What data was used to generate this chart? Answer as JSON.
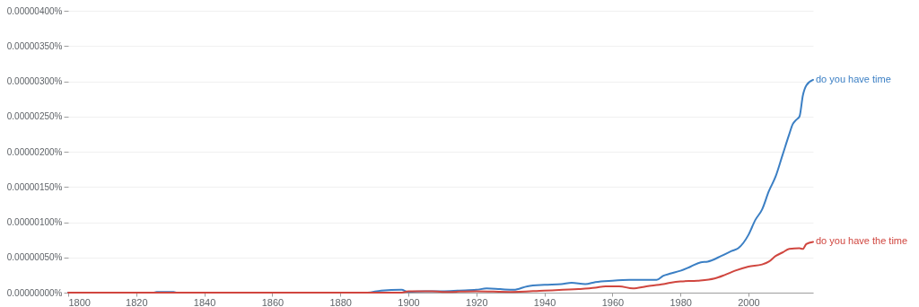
{
  "chart_data": {
    "type": "line",
    "grid": "y",
    "marker": "none",
    "line_style": "solid",
    "xlim": [
      1800,
      2019
    ],
    "xticks": [
      1800,
      1820,
      1840,
      1860,
      1880,
      1900,
      1920,
      1940,
      1960,
      1980,
      2000
    ],
    "ylim": [
      0,
      4e-06
    ],
    "yticks": [
      {
        "value": 0,
        "label": "0.00000000%"
      },
      {
        "value": 5e-07,
        "label": "0.00000050%"
      },
      {
        "value": 1e-06,
        "label": "0.00000100%"
      },
      {
        "value": 1.5e-06,
        "label": "0.00000150%"
      },
      {
        "value": 2e-06,
        "label": "0.00000200%"
      },
      {
        "value": 2.5e-06,
        "label": "0.00000250%"
      },
      {
        "value": 3e-06,
        "label": "0.00000300%"
      },
      {
        "value": 3.5e-06,
        "label": "0.00000350%"
      },
      {
        "value": 4e-06,
        "label": "0.00000400%"
      }
    ],
    "series": [
      {
        "name": "do you have time",
        "color": "#3b7fc4",
        "x": [
          1800,
          1825,
          1826,
          1831,
          1832,
          1888,
          1892,
          1898,
          1900,
          1905,
          1910,
          1915,
          1920,
          1923,
          1927,
          1931,
          1935,
          1940,
          1945,
          1948,
          1952,
          1955,
          1960,
          1965,
          1970,
          1973,
          1975,
          1977,
          1980,
          1983,
          1986,
          1988,
          1992,
          1995,
          1997,
          2000,
          2002,
          2004,
          2006,
          2008,
          2010,
          2012,
          2013,
          2014,
          2015,
          2016,
          2017,
          2019
        ],
        "values": [
          0,
          0,
          1e-08,
          1e-08,
          0,
          0,
          3e-08,
          4e-08,
          1e-08,
          2e-08,
          2e-08,
          3e-08,
          4e-08,
          6e-08,
          5e-08,
          4e-08,
          9e-08,
          1.1e-07,
          1.2e-07,
          1.4e-07,
          1.2e-07,
          1.5e-07,
          1.7e-07,
          1.8e-07,
          1.8e-07,
          1.8e-07,
          2.4e-07,
          2.7e-07,
          3.1e-07,
          3.7e-07,
          4.3e-07,
          4.4e-07,
          5.2e-07,
          5.9e-07,
          6.3e-07,
          8.2e-07,
          1.03e-06,
          1.18e-06,
          1.44e-06,
          1.65e-06,
          1.95e-06,
          2.25e-06,
          2.39e-06,
          2.45e-06,
          2.5e-06,
          2.8e-06,
          2.94e-06,
          3.02e-06
        ]
      },
      {
        "name": "do you have the time",
        "color": "#d0463f",
        "x": [
          1800,
          1898,
          1900,
          1907,
          1910,
          1920,
          1930,
          1940,
          1950,
          1955,
          1958,
          1962,
          1966,
          1970,
          1975,
          1977,
          1980,
          1985,
          1990,
          1993,
          1996,
          2000,
          2004,
          2006,
          2008,
          2010,
          2012,
          2015,
          2016,
          2017,
          2019
        ],
        "values": [
          0,
          0,
          2e-08,
          2e-08,
          1e-08,
          2e-08,
          1e-08,
          3e-08,
          5e-08,
          7e-08,
          9e-08,
          9e-08,
          6e-08,
          9e-08,
          1.2e-07,
          1.4e-07,
          1.6e-07,
          1.7e-07,
          2e-07,
          2.5e-07,
          3.1e-07,
          3.7e-07,
          4e-07,
          4.4e-07,
          5.2e-07,
          5.7e-07,
          6.2e-07,
          6.3e-07,
          6.2e-07,
          6.9e-07,
          7.2e-07
        ]
      }
    ]
  }
}
